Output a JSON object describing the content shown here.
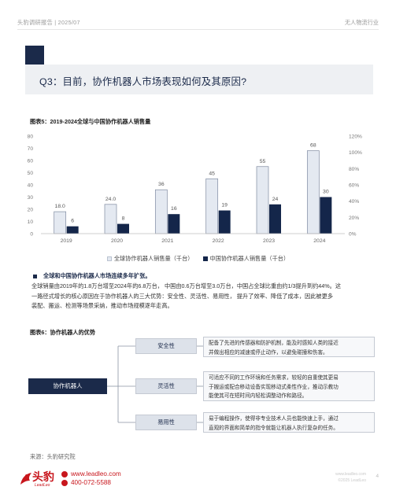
{
  "header": {
    "left": "头豹调研报告 | 2025/07",
    "right": "无人物流行业"
  },
  "question": {
    "title": "Q3：目前，协作机器人市场表现如何及其原因?"
  },
  "figure5": {
    "title": "图表5：2019-2024全球与中国协作机器人销售量"
  },
  "chart_data": {
    "type": "bar",
    "categories": [
      "2019",
      "2020",
      "2021",
      "2022",
      "2023",
      "2024"
    ],
    "series": [
      {
        "name": "全球协作机器人销售量（千台）",
        "values": [
          18.0,
          24.0,
          36,
          45,
          55,
          68
        ],
        "labels": [
          "18.0",
          "24.0",
          "36",
          "45",
          "55",
          "68"
        ],
        "color": "#e4e9f1"
      },
      {
        "name": "中国协作机器人销售量（千台）",
        "values": [
          6,
          8,
          16,
          19,
          24,
          30
        ],
        "labels": [
          "6",
          "8",
          "16",
          "19",
          "24",
          "30"
        ],
        "color": "#14264a"
      }
    ],
    "y_left_ticks": [
      "0",
      "10",
      "20",
      "30",
      "40",
      "50",
      "60",
      "70",
      "80"
    ],
    "y_right_ticks": [
      "0%",
      "20%",
      "40%",
      "60%",
      "80%",
      "100%",
      "120%"
    ],
    "ylim": [
      0,
      80
    ],
    "xlabel": "",
    "ylabel": "",
    "legend_position": "bottom-center",
    "grid": false
  },
  "summary": {
    "bullet": "全球和中国协作机器人市场连续多年扩张。",
    "lines": [
      "全球销量由2019年的1.8万台增至2024年的6.8万台， 中国由0.6万台增至3.0万台，中国占全球比重由约1/3提升到约44%。这",
      "一路径式增长的核心原因在于协作机器人的三大优势：安全性、灵活性、易用性， 提升了效率、降低了成本，因此被更多",
      "装配、搬运、检测等场景采纳，推动市场规模逐年走高。"
    ]
  },
  "figure6": {
    "title": "图表6：协作机器人的优势",
    "main": "协作机器人",
    "items": [
      {
        "label": "安全性",
        "desc": [
          "配备了先进的传感器和防护机制，能及时感知人类的接近",
          "并做出相应的减速或停止动作，以避免碰撞和伤害。"
        ]
      },
      {
        "label": "灵活性",
        "desc": [
          "可适应不同的工作环境和任务需求，较轻的自重使其更易",
          "于搬运或配合移动设备实现移动式柔性作业，推动示教功",
          "能使其可在短时间内轻松调整动作和路径。"
        ]
      },
      {
        "label": "易用性",
        "desc": [
          "易于编程操作，使得非专业技术人员也能快速上手，通过",
          "直观的界面和简单的指令就能让机器人执行复杂的任务。"
        ]
      }
    ]
  },
  "source": "来源：头豹研究院",
  "footer": {
    "logo_text": "头豹",
    "logo_sub": "LeadLeo",
    "website": "www.leadleo.com",
    "phone": "400-072-5588",
    "right_line1": "www.leadleo.com",
    "right_line2": "©2025 LeadLeo",
    "page": "4"
  },
  "colors": {
    "navy": "#1b2a4a",
    "global_bar": "#e4e9f1",
    "china_bar": "#14264a",
    "brand_red": "#c8161d"
  }
}
